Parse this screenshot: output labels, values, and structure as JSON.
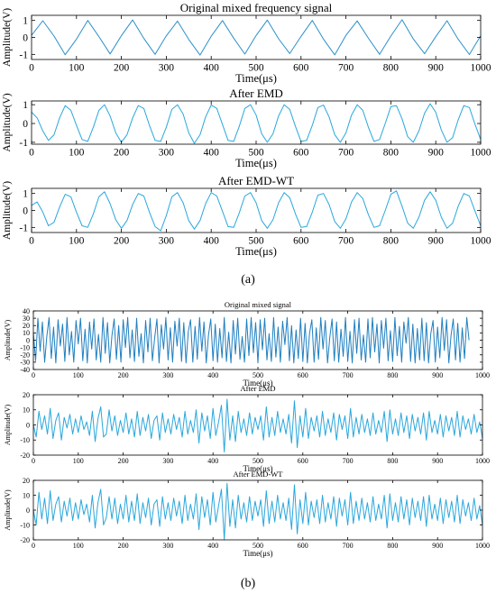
{
  "figure": {
    "panel_a_label": "(a)",
    "panel_b_label": "(b)"
  },
  "chart_data": [
    {
      "type": "line",
      "title": "Original mixed frequency signal",
      "xlabel": "Time(μs)",
      "ylabel": "Amplitude(V)",
      "xlim": [
        0,
        1000
      ],
      "ylim": [
        -1.3,
        1.3
      ],
      "xticks": [
        0,
        100,
        200,
        300,
        400,
        500,
        600,
        700,
        800,
        900,
        1000
      ],
      "yticks": [
        -1,
        0,
        1
      ],
      "grid": false,
      "color": "#2b8fcb",
      "series": [
        {
          "x_start": 0,
          "x_step": 25,
          "values": [
            0.12,
            0.98,
            0.08,
            -1.02,
            -0.1,
            1.0,
            0.05,
            -0.97,
            0.1,
            1.03,
            -0.06,
            -1.0,
            0.09,
            0.96,
            -0.12,
            -1.04,
            0.07,
            0.99,
            -0.04,
            -0.98,
            0.11,
            1.02,
            -0.08,
            -0.95,
            0.06,
            1.0,
            -0.1,
            -1.03,
            0.12,
            0.97,
            -0.05,
            -1.0,
            0.08,
            1.04,
            -0.09,
            -0.96,
            0.04,
            0.98,
            -0.11,
            -1.01,
            0.1
          ]
        }
      ]
    },
    {
      "type": "line",
      "title": "After EMD",
      "xlabel": "Time(μs)",
      "ylabel": "Amplitude(V)",
      "xlim": [
        0,
        1000
      ],
      "ylim": [
        -1.1,
        1.2
      ],
      "xticks": [
        0,
        100,
        200,
        300,
        400,
        500,
        600,
        700,
        800,
        900,
        1000
      ],
      "yticks": [
        -1,
        0,
        1
      ],
      "grid": false,
      "color": "#2aa7dc",
      "series": [
        {
          "x_start": 0,
          "x_step": 12.5,
          "values": [
            0.6,
            0.3,
            -0.4,
            -0.9,
            -0.6,
            0.3,
            0.95,
            0.7,
            -0.1,
            -0.85,
            -0.95,
            -0.2,
            0.7,
            1.0,
            0.4,
            -0.5,
            -1.0,
            -0.6,
            0.3,
            0.95,
            0.8,
            -0.1,
            -0.9,
            -0.95,
            -0.2,
            0.75,
            1.0,
            0.5,
            -0.5,
            -1.05,
            -0.6,
            0.35,
            0.98,
            0.8,
            -0.05,
            -0.9,
            -0.95,
            -0.15,
            0.8,
            1.0,
            0.45,
            -0.55,
            -1.0,
            -0.55,
            0.4,
            1.0,
            0.75,
            -0.15,
            -0.95,
            -0.9,
            -0.1,
            0.85,
            0.98,
            0.35,
            -0.6,
            -1.0,
            -0.5,
            0.45,
            1.0,
            0.7,
            -0.2,
            -0.95,
            -0.85,
            0.0,
            0.9,
            0.95,
            0.25,
            -0.7,
            -1.0,
            -0.4,
            0.55,
            1.05,
            0.6,
            -0.35,
            -1.0,
            -0.75,
            0.2,
            0.95,
            0.85,
            -0.05,
            -0.85
          ]
        }
      ]
    },
    {
      "type": "line",
      "title": "After EMD-WT",
      "xlabel": "Time(μs)",
      "ylabel": "Amplitude(V)",
      "xlim": [
        0,
        1000
      ],
      "ylim": [
        -1.3,
        1.3
      ],
      "xticks": [
        0,
        100,
        200,
        300,
        400,
        500,
        600,
        700,
        800,
        900,
        1000
      ],
      "yticks": [
        -1,
        0,
        1
      ],
      "grid": false,
      "color": "#2aa7dc",
      "series": [
        {
          "x_start": 0,
          "x_step": 12.5,
          "values": [
            0.3,
            0.5,
            -0.1,
            -0.9,
            -0.7,
            0.2,
            0.95,
            0.8,
            -0.1,
            -0.9,
            -1.0,
            -0.2,
            0.8,
            1.1,
            0.4,
            -0.55,
            -1.05,
            -0.6,
            0.35,
            1.0,
            0.85,
            -0.1,
            -0.95,
            -1.2,
            -0.3,
            0.8,
            1.05,
            0.45,
            -0.6,
            -1.1,
            -0.6,
            0.4,
            1.05,
            0.85,
            -0.05,
            -0.95,
            -1.0,
            -0.15,
            0.85,
            1.05,
            0.45,
            -0.6,
            -1.05,
            -0.55,
            0.45,
            1.05,
            0.75,
            -0.2,
            -1.0,
            -0.95,
            -0.1,
            0.9,
            1.0,
            0.35,
            -0.65,
            -1.05,
            -0.5,
            0.5,
            1.05,
            0.7,
            -0.25,
            -1.0,
            -0.9,
            0.0,
            0.95,
            1.15,
            0.25,
            -0.75,
            -1.05,
            -0.4,
            0.6,
            1.1,
            0.6,
            -0.4,
            -1.05,
            -0.75,
            0.25,
            1.0,
            0.85,
            -0.05,
            -0.9
          ]
        }
      ]
    },
    {
      "type": "line",
      "title": "Original mixed signal",
      "xlabel": "Time(μs)",
      "ylabel": "Amplitude(V)",
      "xlim": [
        0,
        1000
      ],
      "ylim": [
        -40,
        40
      ],
      "xticks": [
        0,
        100,
        200,
        300,
        400,
        500,
        600,
        700,
        800,
        900,
        1000
      ],
      "yticks": [
        -40,
        -30,
        -20,
        -10,
        0,
        10,
        20,
        30,
        40
      ],
      "grid": false,
      "color": "#1f7fc0",
      "series": [
        {
          "x_start": 0,
          "x_step": 5,
          "values": [
            10,
            -28,
            30,
            -15,
            25,
            -30,
            5,
            31,
            -25,
            18,
            -31,
            28,
            -8,
            22,
            -29,
            31,
            -20,
            12,
            -30,
            27,
            -5,
            30,
            -28,
            15,
            -31,
            25,
            -12,
            29,
            -27,
            8,
            -30,
            31,
            -18,
            24,
            -31,
            6,
            29,
            -26,
            20,
            -30,
            28,
            -10,
            31,
            -24,
            14,
            -29,
            30,
            -22,
            9,
            -31,
            27,
            -16,
            30,
            -28,
            3,
            29,
            -31,
            21,
            -12,
            31,
            -27,
            17,
            -30,
            26,
            -8,
            30,
            -29,
            24,
            -31,
            12,
            28,
            -30,
            19,
            -26,
            31,
            -15,
            25,
            -31,
            7,
            29,
            -28,
            22,
            -30,
            16,
            -24,
            31,
            -29,
            11,
            -31,
            27,
            -19,
            30,
            -26,
            5,
            -30,
            29,
            -21,
            31,
            -17,
            24,
            -31,
            28,
            -13,
            30,
            -27,
            9,
            -29,
            31,
            -23,
            18,
            -30,
            26,
            -6,
            31,
            -28,
            20,
            -31,
            14,
            -25,
            30,
            -29,
            23,
            -31,
            10,
            28,
            -30,
            17,
            -26,
            31,
            -12,
            27,
            -31,
            4,
            29,
            -28,
            25,
            -30,
            15,
            -22,
            31,
            -29,
            12,
            -31,
            28,
            -18,
            30,
            -27,
            7,
            -30,
            29,
            -24,
            31,
            -16,
            22,
            -31,
            27,
            -11,
            30,
            -28,
            13,
            -29,
            31,
            -21,
            19,
            -30,
            25,
            -4,
            31,
            -29,
            22,
            -31,
            16,
            -27,
            30,
            -28,
            24,
            -31,
            9,
            27,
            -30,
            18,
            -24,
            31,
            -14,
            28,
            -31,
            6,
            29,
            -27,
            23,
            -30,
            17,
            -25,
            31,
            0
          ]
        }
      ]
    },
    {
      "type": "line",
      "title": "After EMD",
      "xlabel": "Time(μs)",
      "ylabel": "Amplitude(V)",
      "xlim": [
        0,
        1000
      ],
      "ylim": [
        -20,
        20
      ],
      "xticks": [
        0,
        100,
        200,
        300,
        400,
        500,
        600,
        700,
        800,
        900,
        1000
      ],
      "yticks": [
        -20,
        -10,
        0,
        10,
        20
      ],
      "grid": false,
      "color": "#2aa7dc",
      "series": [
        {
          "x_start": 0,
          "x_step": 6.25,
          "values": [
            0,
            -8,
            9,
            -3,
            6,
            -6,
            11,
            -9,
            3,
            8,
            -10,
            5,
            -2,
            7,
            -6,
            4,
            -5,
            6,
            -3,
            2,
            -7,
            9,
            -11,
            4,
            12,
            -8,
            -6,
            10,
            -4,
            6,
            -7,
            3,
            -5,
            8,
            -6,
            4,
            -8,
            9,
            -7,
            5,
            -4,
            7,
            -9,
            3,
            6,
            -10,
            8,
            -5,
            4,
            -6,
            7,
            -3,
            5,
            -8,
            9,
            -6,
            3,
            -5,
            10,
            -12,
            8,
            -4,
            6,
            -9,
            11,
            -7,
            2,
            13,
            -18,
            17,
            -10,
            6,
            -11,
            9,
            -5,
            4,
            -7,
            8,
            -6,
            5,
            -3,
            6,
            -10,
            12,
            -8,
            5,
            -7,
            9,
            -5,
            4,
            -6,
            7,
            -12,
            16,
            -15,
            6,
            -8,
            11,
            -9,
            5,
            -4,
            6,
            -8,
            9,
            -7,
            4,
            -5,
            8,
            -10,
            7,
            -3,
            6,
            -9,
            11,
            -8,
            5,
            -6,
            7,
            -5,
            4,
            -7,
            8,
            -6,
            3,
            -5,
            9,
            -11,
            10,
            -6,
            4,
            -7,
            8,
            -5,
            6,
            -9,
            7,
            -4,
            5,
            -6,
            8,
            -10,
            9,
            -5,
            3,
            -6,
            7,
            -8,
            6,
            -4,
            5,
            -7,
            9,
            -8,
            6,
            -3,
            4,
            -6,
            7,
            -5,
            2,
            -9
          ]
        }
      ]
    },
    {
      "type": "line",
      "title": "After EMD-WT",
      "xlabel": "Time(μs)",
      "ylabel": "Amplitude(V)",
      "xlim": [
        0,
        1000
      ],
      "ylim": [
        -20,
        20
      ],
      "xticks": [
        0,
        100,
        200,
        300,
        400,
        500,
        600,
        700,
        800,
        900,
        1000
      ],
      "yticks": [
        -20,
        -10,
        0,
        10,
        20
      ],
      "grid": false,
      "color": "#2aa7dc",
      "series": [
        {
          "x_start": 0,
          "x_step": 6.25,
          "values": [
            0,
            -10,
            12,
            -6,
            8,
            -9,
            13,
            -7,
            4,
            9,
            -8,
            6,
            -4,
            8,
            -7,
            5,
            -6,
            7,
            -3,
            4,
            -8,
            10,
            -12,
            5,
            14,
            -10,
            -5,
            9,
            -6,
            8,
            -9,
            4,
            -6,
            10,
            -8,
            6,
            -7,
            11,
            -9,
            5,
            -5,
            8,
            -10,
            4,
            7,
            -11,
            9,
            -6,
            5,
            -7,
            8,
            -4,
            6,
            -9,
            10,
            -7,
            4,
            -6,
            11,
            -13,
            9,
            -5,
            7,
            -10,
            12,
            -8,
            3,
            14,
            -20,
            18,
            -11,
            7,
            -12,
            10,
            -6,
            5,
            -8,
            9,
            -7,
            6,
            -4,
            7,
            -11,
            13,
            -9,
            6,
            -8,
            10,
            -6,
            5,
            -7,
            8,
            -13,
            17,
            -16,
            7,
            -9,
            12,
            -10,
            6,
            -5,
            7,
            -9,
            10,
            -8,
            5,
            -6,
            9,
            -11,
            8,
            -4,
            7,
            -10,
            12,
            -9,
            6,
            -7,
            8,
            -6,
            5,
            -8,
            9,
            -7,
            4,
            -6,
            10,
            -12,
            11,
            -7,
            5,
            -8,
            9,
            -6,
            7,
            -10,
            8,
            -5,
            6,
            -7,
            9,
            -11,
            10,
            -6,
            4,
            -7,
            8,
            -9,
            7,
            -5,
            6,
            -8,
            10,
            -9,
            7,
            -4,
            5,
            -7,
            8,
            -6,
            3,
            -10
          ]
        }
      ]
    }
  ]
}
